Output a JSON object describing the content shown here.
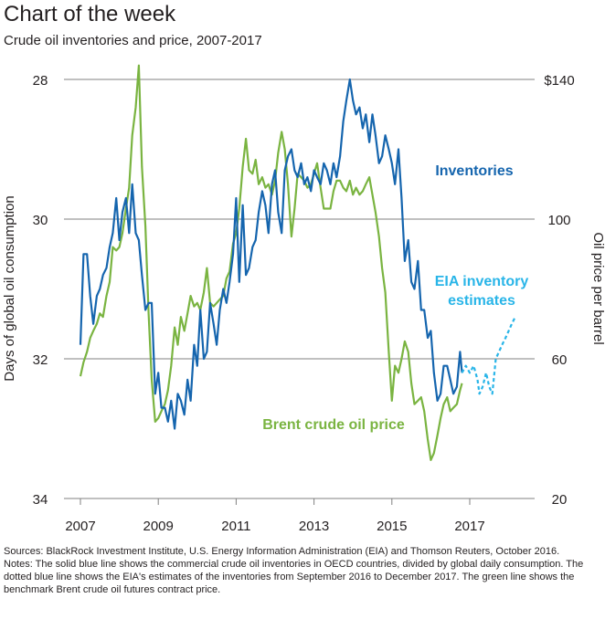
{
  "header": {
    "title": "Chart of the week",
    "subtitle": "Crude oil inventories and price, 2007-2017"
  },
  "footer": {
    "sources": "Sources: BlackRock Investment Institute, U.S. Energy Information Administration (EIA) and Thomson Reuters, October 2016.",
    "notes": "Notes: The solid blue line shows the commercial crude oil inventories in OECD countries, divided by global daily consumption. The dotted blue line shows the EIA's estimates of the inventories from September 2016 to December 2017. The green line shows the benchmark Brent crude oil futures contract price."
  },
  "colors": {
    "inventories": "#1565ae",
    "estimates": "#29b5e8",
    "brent": "#7ab441",
    "grid": "#808080",
    "text": "#231f20"
  },
  "chart_data": {
    "type": "line",
    "x_ticks": [
      "2007",
      "2009",
      "2011",
      "2013",
      "2015",
      "2017"
    ],
    "x_tick_values": [
      2007,
      2009,
      2011,
      2013,
      2015,
      2017
    ],
    "xlim": [
      2007,
      2018.2
    ],
    "left_axis": {
      "label": "Days of global oil consumption",
      "ticks": [
        "28",
        "30",
        "32",
        "34"
      ],
      "tick_values": [
        28,
        30,
        32,
        34
      ],
      "range": [
        28,
        34
      ],
      "inverted": true
    },
    "right_axis": {
      "label": "Oil price per barrel",
      "ticks": [
        "$140",
        "100",
        "60",
        "20"
      ],
      "tick_values": [
        140,
        100,
        60,
        20
      ],
      "range": [
        20,
        140
      ]
    },
    "series": [
      {
        "name": "Inventories",
        "label": "Inventories",
        "axis": "left",
        "style": "solid",
        "points": [
          [
            2007.0,
            31.8
          ],
          [
            2007.08,
            30.5
          ],
          [
            2007.17,
            30.5
          ],
          [
            2007.25,
            31.1
          ],
          [
            2007.33,
            31.5
          ],
          [
            2007.42,
            31.1
          ],
          [
            2007.5,
            31.0
          ],
          [
            2007.58,
            30.8
          ],
          [
            2007.67,
            30.7
          ],
          [
            2007.75,
            30.4
          ],
          [
            2007.83,
            30.2
          ],
          [
            2007.92,
            29.7
          ],
          [
            2008.0,
            30.3
          ],
          [
            2008.08,
            29.9
          ],
          [
            2008.17,
            29.7
          ],
          [
            2008.25,
            30.2
          ],
          [
            2008.33,
            29.5
          ],
          [
            2008.42,
            30.2
          ],
          [
            2008.5,
            30.3
          ],
          [
            2008.58,
            30.8
          ],
          [
            2008.67,
            31.3
          ],
          [
            2008.75,
            31.2
          ],
          [
            2008.83,
            31.2
          ],
          [
            2008.92,
            32.5
          ],
          [
            2009.0,
            32.2
          ],
          [
            2009.08,
            32.7
          ],
          [
            2009.17,
            32.7
          ],
          [
            2009.25,
            32.9
          ],
          [
            2009.33,
            32.6
          ],
          [
            2009.42,
            33.0
          ],
          [
            2009.5,
            32.5
          ],
          [
            2009.58,
            32.6
          ],
          [
            2009.67,
            32.8
          ],
          [
            2009.75,
            32.3
          ],
          [
            2009.83,
            32.6
          ],
          [
            2009.92,
            31.8
          ],
          [
            2010.0,
            32.1
          ],
          [
            2010.08,
            31.3
          ],
          [
            2010.17,
            32.0
          ],
          [
            2010.25,
            31.9
          ],
          [
            2010.33,
            31.2
          ],
          [
            2010.42,
            31.5
          ],
          [
            2010.5,
            31.8
          ],
          [
            2010.58,
            31.3
          ],
          [
            2010.67,
            31.0
          ],
          [
            2010.75,
            31.2
          ],
          [
            2010.83,
            30.9
          ],
          [
            2010.92,
            30.5
          ],
          [
            2011.0,
            29.7
          ],
          [
            2011.08,
            30.9
          ],
          [
            2011.17,
            29.8
          ],
          [
            2011.25,
            30.8
          ],
          [
            2011.33,
            30.7
          ],
          [
            2011.42,
            30.4
          ],
          [
            2011.5,
            30.3
          ],
          [
            2011.58,
            29.9
          ],
          [
            2011.67,
            29.6
          ],
          [
            2011.75,
            29.8
          ],
          [
            2011.83,
            30.2
          ],
          [
            2011.92,
            29.5
          ],
          [
            2012.0,
            29.3
          ],
          [
            2012.08,
            29.9
          ],
          [
            2012.17,
            30.2
          ],
          [
            2012.25,
            29.3
          ],
          [
            2012.33,
            29.1
          ],
          [
            2012.42,
            29.0
          ],
          [
            2012.5,
            29.3
          ],
          [
            2012.58,
            29.4
          ],
          [
            2012.67,
            29.2
          ],
          [
            2012.75,
            29.5
          ],
          [
            2012.83,
            29.4
          ],
          [
            2012.92,
            29.6
          ],
          [
            2013.0,
            29.3
          ],
          [
            2013.08,
            29.4
          ],
          [
            2013.17,
            29.5
          ],
          [
            2013.25,
            29.2
          ],
          [
            2013.33,
            29.3
          ],
          [
            2013.42,
            29.5
          ],
          [
            2013.5,
            29.2
          ],
          [
            2013.58,
            29.4
          ],
          [
            2013.67,
            29.1
          ],
          [
            2013.75,
            28.6
          ],
          [
            2013.83,
            28.3
          ],
          [
            2013.92,
            28.0
          ],
          [
            2014.0,
            28.3
          ],
          [
            2014.08,
            28.5
          ],
          [
            2014.17,
            28.4
          ],
          [
            2014.25,
            28.7
          ],
          [
            2014.33,
            28.5
          ],
          [
            2014.42,
            28.9
          ],
          [
            2014.5,
            28.5
          ],
          [
            2014.58,
            28.8
          ],
          [
            2014.67,
            29.2
          ],
          [
            2014.75,
            29.1
          ],
          [
            2014.83,
            28.8
          ],
          [
            2014.92,
            29.0
          ],
          [
            2015.0,
            29.2
          ],
          [
            2015.08,
            29.5
          ],
          [
            2015.17,
            29.0
          ],
          [
            2015.25,
            29.7
          ],
          [
            2015.33,
            30.6
          ],
          [
            2015.42,
            30.3
          ],
          [
            2015.5,
            30.9
          ],
          [
            2015.58,
            31.0
          ],
          [
            2015.67,
            30.6
          ],
          [
            2015.75,
            31.3
          ],
          [
            2015.83,
            31.3
          ],
          [
            2015.92,
            31.7
          ],
          [
            2016.0,
            31.6
          ],
          [
            2016.08,
            32.2
          ],
          [
            2016.17,
            32.6
          ],
          [
            2016.25,
            32.5
          ],
          [
            2016.33,
            32.1
          ],
          [
            2016.42,
            32.1
          ],
          [
            2016.5,
            32.3
          ],
          [
            2016.58,
            32.5
          ],
          [
            2016.67,
            32.4
          ],
          [
            2016.75,
            31.9
          ],
          [
            2016.8,
            32.2
          ]
        ]
      },
      {
        "name": "EIA inventory estimates",
        "label": "EIA inventory estimates",
        "axis": "left",
        "style": "dashed",
        "points": [
          [
            2016.8,
            32.2
          ],
          [
            2016.9,
            32.1
          ],
          [
            2017.0,
            32.2
          ],
          [
            2017.1,
            32.1
          ],
          [
            2017.2,
            32.3
          ],
          [
            2017.25,
            32.5
          ],
          [
            2017.33,
            32.4
          ],
          [
            2017.42,
            32.2
          ],
          [
            2017.5,
            32.4
          ],
          [
            2017.58,
            32.5
          ],
          [
            2017.67,
            32.0
          ],
          [
            2017.75,
            31.9
          ],
          [
            2017.83,
            31.8
          ],
          [
            2017.92,
            31.7
          ],
          [
            2018.0,
            31.6
          ],
          [
            2018.08,
            31.5
          ],
          [
            2018.17,
            31.4
          ]
        ]
      },
      {
        "name": "Brent crude oil price",
        "label": "Brent crude oil price",
        "axis": "right",
        "style": "solid",
        "points": [
          [
            2007.0,
            55
          ],
          [
            2007.08,
            59
          ],
          [
            2007.17,
            62
          ],
          [
            2007.25,
            66
          ],
          [
            2007.33,
            68
          ],
          [
            2007.42,
            70
          ],
          [
            2007.5,
            73
          ],
          [
            2007.58,
            72
          ],
          [
            2007.67,
            78
          ],
          [
            2007.75,
            82
          ],
          [
            2007.83,
            92
          ],
          [
            2007.92,
            91
          ],
          [
            2008.0,
            92
          ],
          [
            2008.08,
            96
          ],
          [
            2008.17,
            103
          ],
          [
            2008.25,
            109
          ],
          [
            2008.33,
            124
          ],
          [
            2008.42,
            132
          ],
          [
            2008.5,
            144
          ],
          [
            2008.58,
            115
          ],
          [
            2008.67,
            98
          ],
          [
            2008.75,
            73
          ],
          [
            2008.83,
            54
          ],
          [
            2008.92,
            42
          ],
          [
            2009.0,
            43
          ],
          [
            2009.08,
            45
          ],
          [
            2009.17,
            47
          ],
          [
            2009.25,
            51
          ],
          [
            2009.33,
            58
          ],
          [
            2009.42,
            69
          ],
          [
            2009.5,
            64
          ],
          [
            2009.58,
            72
          ],
          [
            2009.67,
            68
          ],
          [
            2009.75,
            73
          ],
          [
            2009.83,
            78
          ],
          [
            2009.92,
            75
          ],
          [
            2010.0,
            76
          ],
          [
            2010.08,
            74
          ],
          [
            2010.17,
            79
          ],
          [
            2010.25,
            86
          ],
          [
            2010.33,
            76
          ],
          [
            2010.42,
            75
          ],
          [
            2010.5,
            76
          ],
          [
            2010.58,
            77
          ],
          [
            2010.67,
            78
          ],
          [
            2010.75,
            83
          ],
          [
            2010.83,
            85
          ],
          [
            2010.92,
            93
          ],
          [
            2011.0,
            96
          ],
          [
            2011.08,
            103
          ],
          [
            2011.17,
            115
          ],
          [
            2011.25,
            123
          ],
          [
            2011.33,
            114
          ],
          [
            2011.42,
            113
          ],
          [
            2011.5,
            117
          ],
          [
            2011.58,
            110
          ],
          [
            2011.67,
            112
          ],
          [
            2011.75,
            109
          ],
          [
            2011.83,
            110
          ],
          [
            2011.92,
            107
          ],
          [
            2012.0,
            111
          ],
          [
            2012.08,
            119
          ],
          [
            2012.17,
            125
          ],
          [
            2012.25,
            120
          ],
          [
            2012.33,
            110
          ],
          [
            2012.42,
            95
          ],
          [
            2012.5,
            103
          ],
          [
            2012.58,
            113
          ],
          [
            2012.67,
            112
          ],
          [
            2012.75,
            111
          ],
          [
            2012.83,
            109
          ],
          [
            2012.92,
            110
          ],
          [
            2013.0,
            113
          ],
          [
            2013.08,
            116
          ],
          [
            2013.17,
            109
          ],
          [
            2013.25,
            103
          ],
          [
            2013.33,
            103
          ],
          [
            2013.42,
            103
          ],
          [
            2013.5,
            108
          ],
          [
            2013.58,
            111
          ],
          [
            2013.67,
            111
          ],
          [
            2013.75,
            109
          ],
          [
            2013.83,
            108
          ],
          [
            2013.92,
            111
          ],
          [
            2014.0,
            107
          ],
          [
            2014.08,
            109
          ],
          [
            2014.17,
            107
          ],
          [
            2014.25,
            108
          ],
          [
            2014.33,
            110
          ],
          [
            2014.42,
            112
          ],
          [
            2014.5,
            107
          ],
          [
            2014.58,
            102
          ],
          [
            2014.67,
            95
          ],
          [
            2014.75,
            86
          ],
          [
            2014.83,
            79
          ],
          [
            2014.92,
            62
          ],
          [
            2015.0,
            48
          ],
          [
            2015.08,
            58
          ],
          [
            2015.17,
            56
          ],
          [
            2015.25,
            60
          ],
          [
            2015.33,
            65
          ],
          [
            2015.42,
            62
          ],
          [
            2015.5,
            53
          ],
          [
            2015.58,
            47
          ],
          [
            2015.67,
            48
          ],
          [
            2015.75,
            49
          ],
          [
            2015.83,
            45
          ],
          [
            2015.92,
            37
          ],
          [
            2016.0,
            31
          ],
          [
            2016.08,
            33
          ],
          [
            2016.17,
            38
          ],
          [
            2016.25,
            43
          ],
          [
            2016.33,
            47
          ],
          [
            2016.42,
            49
          ],
          [
            2016.5,
            45
          ],
          [
            2016.58,
            46
          ],
          [
            2016.67,
            47
          ],
          [
            2016.75,
            51
          ],
          [
            2016.8,
            53
          ]
        ]
      }
    ]
  }
}
